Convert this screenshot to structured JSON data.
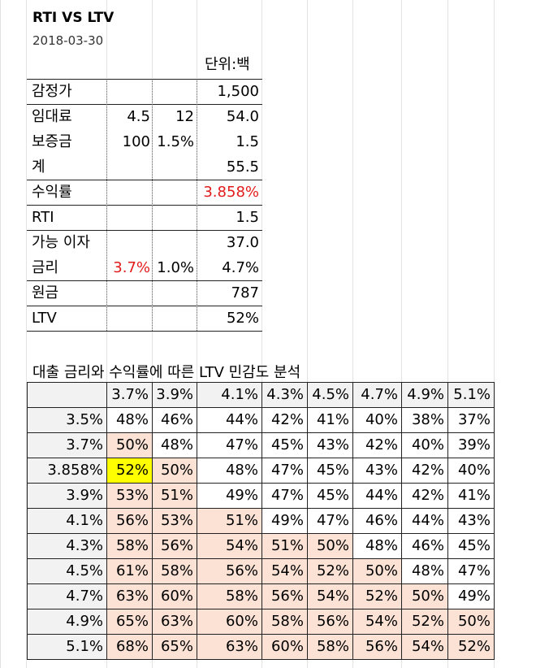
{
  "title": "RTI VS LTV",
  "date": "2018-03-30",
  "unit": "단위:백",
  "summary_rows": [
    {
      "label": "감정가",
      "a": "",
      "b": "",
      "value": "1,500",
      "value_red": false,
      "a_red": false
    },
    {
      "label": "임대료",
      "a": "4.5",
      "b": "12",
      "value": "54.0",
      "value_red": false,
      "a_red": false
    },
    {
      "label": "보증금",
      "a": "100",
      "b": "1.5%",
      "value": "1.5",
      "value_red": false,
      "a_red": false
    },
    {
      "label": "계",
      "a": "",
      "b": "",
      "value": "55.5",
      "value_red": false,
      "a_red": false
    },
    {
      "label": "수익률",
      "a": "",
      "b": "",
      "value": "3.858%",
      "value_red": true,
      "a_red": false
    },
    {
      "label": "RTI",
      "a": "",
      "b": "",
      "value": "1.5",
      "value_red": false,
      "a_red": false
    },
    {
      "label": "가능 이자",
      "a": "",
      "b": "",
      "value": "37.0",
      "value_red": false,
      "a_red": false
    },
    {
      "label": "금리",
      "a": "3.7%",
      "b": "1.0%",
      "value": "4.7%",
      "value_red": false,
      "a_red": true
    },
    {
      "label": "원금",
      "a": "",
      "b": "",
      "value": "787",
      "value_red": false,
      "a_red": false
    },
    {
      "label": "LTV",
      "a": "",
      "b": "",
      "value": "52%",
      "value_red": false,
      "a_red": false
    }
  ],
  "sensitivity": {
    "title": "대출 금리와 수익률에 따른 LTV 민감도 분석",
    "col_headers": [
      "3.7%",
      "3.9%",
      "4.1%",
      "4.3%",
      "4.5%",
      "4.7%",
      "4.9%",
      "5.1%"
    ],
    "row_headers": [
      "3.5%",
      "3.7%",
      "3.858%",
      "3.9%",
      "4.1%",
      "4.3%",
      "4.5%",
      "4.7%",
      "4.9%",
      "5.1%"
    ],
    "values": [
      [
        "48%",
        "46%",
        "44%",
        "42%",
        "41%",
        "40%",
        "38%",
        "37%"
      ],
      [
        "50%",
        "48%",
        "47%",
        "45%",
        "43%",
        "42%",
        "40%",
        "39%"
      ],
      [
        "52%",
        "50%",
        "48%",
        "47%",
        "45%",
        "43%",
        "42%",
        "40%"
      ],
      [
        "53%",
        "51%",
        "49%",
        "47%",
        "45%",
        "44%",
        "42%",
        "41%"
      ],
      [
        "56%",
        "53%",
        "51%",
        "49%",
        "47%",
        "46%",
        "44%",
        "43%"
      ],
      [
        "58%",
        "56%",
        "54%",
        "51%",
        "50%",
        "48%",
        "46%",
        "45%"
      ],
      [
        "61%",
        "58%",
        "56%",
        "54%",
        "52%",
        "50%",
        "48%",
        "47%"
      ],
      [
        "63%",
        "60%",
        "58%",
        "56%",
        "54%",
        "52%",
        "50%",
        "49%"
      ],
      [
        "65%",
        "63%",
        "60%",
        "58%",
        "56%",
        "54%",
        "52%",
        "50%"
      ],
      [
        "68%",
        "65%",
        "63%",
        "60%",
        "58%",
        "56%",
        "54%",
        "52%"
      ]
    ],
    "highlight_threshold": 50,
    "colors": {
      "highlight": "#fbe2d5",
      "selected": "#ffff00",
      "header": "#f2f2f2",
      "red_text": "#e21b1b"
    }
  }
}
